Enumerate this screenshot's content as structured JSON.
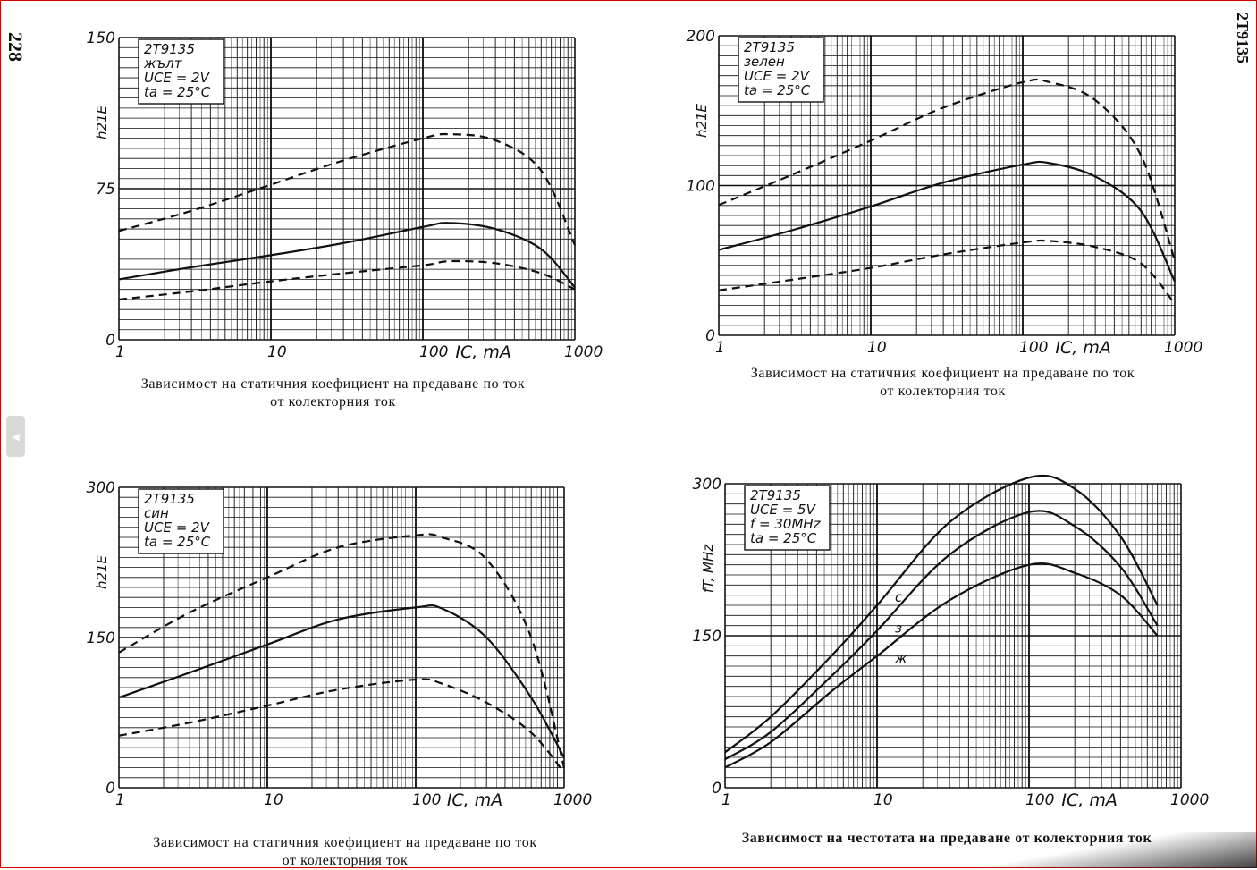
{
  "page": {
    "page_number": "228",
    "part_number_header": "2T9135",
    "nav_handle_icon": "chevron-left-icon"
  },
  "captions": [
    {
      "line1": "Зависимост на статичния коефициент на предаване по ток",
      "line2": "от колекторния ток"
    },
    {
      "line1": "Зависимост на статичния коефициент на предаване по ток",
      "line2": "от колекторния ток"
    },
    {
      "line1": "Зависимост на статичния коефициент на предаване по ток",
      "line2": "от колекторния ток"
    },
    {
      "line1": "Зависимост на честотата на предаване от колекторния ток",
      "line2": ""
    }
  ],
  "chart_data": [
    {
      "type": "line",
      "legend_box": [
        "2T9135",
        "жълт",
        "UCE = 2V",
        "ta = 25°C"
      ],
      "xlabel": "IC, mA",
      "ylabel": "h21E",
      "xscale": "log",
      "xlim": [
        1,
        1000
      ],
      "ylim": [
        0,
        150
      ],
      "x_ticks": [
        "1",
        "10",
        "100",
        "1000"
      ],
      "y_ticks": [
        "0",
        "75",
        "150"
      ],
      "grid": true,
      "series": [
        {
          "style": "dashed",
          "x": [
            1,
            3,
            10,
            30,
            100,
            150,
            300,
            600,
            1000
          ],
          "y": [
            54,
            64,
            77,
            89,
            100,
            102,
            99,
            84,
            47
          ]
        },
        {
          "style": "solid",
          "x": [
            1,
            3,
            10,
            30,
            100,
            150,
            300,
            600,
            1000
          ],
          "y": [
            30,
            36,
            42,
            48,
            56,
            58,
            55,
            45,
            26
          ]
        },
        {
          "style": "dashed",
          "x": [
            1,
            3,
            10,
            30,
            100,
            150,
            300,
            600,
            1000
          ],
          "y": [
            20,
            24,
            29,
            33,
            37,
            39,
            38,
            33,
            25
          ]
        }
      ]
    },
    {
      "type": "line",
      "legend_box": [
        "2T9135",
        "зелен",
        "UCE = 2V",
        "ta = 25°C"
      ],
      "xlabel": "IC, mA",
      "ylabel": "h21E",
      "xscale": "log",
      "xlim": [
        1,
        1000
      ],
      "ylim": [
        0,
        200
      ],
      "x_ticks": [
        "1",
        "10",
        "100",
        "1000"
      ],
      "y_ticks": [
        "0",
        "100",
        "200"
      ],
      "grid": true,
      "series": [
        {
          "style": "dashed",
          "x": [
            1,
            3,
            10,
            30,
            100,
            150,
            300,
            600,
            1000
          ],
          "y": [
            87,
            107,
            130,
            152,
            169,
            169,
            157,
            120,
            50
          ]
        },
        {
          "style": "solid",
          "x": [
            1,
            3,
            10,
            30,
            100,
            150,
            300,
            600,
            1000
          ],
          "y": [
            57,
            70,
            86,
            102,
            114,
            115,
            106,
            83,
            36
          ]
        },
        {
          "style": "dashed",
          "x": [
            1,
            3,
            10,
            30,
            100,
            150,
            300,
            600,
            1000
          ],
          "y": [
            30,
            37,
            45,
            54,
            62,
            63,
            59,
            48,
            21
          ]
        }
      ]
    },
    {
      "type": "line",
      "legend_box": [
        "2T9135",
        "син",
        "UCE = 2V",
        "ta = 25°C"
      ],
      "xlabel": "IC, mA",
      "ylabel": "h21E",
      "xscale": "log",
      "xlim": [
        1,
        1000
      ],
      "ylim": [
        0,
        300
      ],
      "x_ticks": [
        "1",
        "10",
        "100",
        "1000"
      ],
      "y_ticks": [
        "0",
        "150",
        "300"
      ],
      "grid": true,
      "series": [
        {
          "style": "dashed",
          "x": [
            1,
            3,
            10,
            30,
            100,
            150,
            300,
            600,
            1000
          ],
          "y": [
            135,
            175,
            210,
            240,
            252,
            250,
            228,
            150,
            20
          ]
        },
        {
          "style": "solid",
          "x": [
            1,
            3,
            10,
            30,
            100,
            150,
            300,
            600,
            1000
          ],
          "y": [
            90,
            115,
            143,
            168,
            180,
            179,
            150,
            90,
            30
          ]
        },
        {
          "style": "dashed",
          "x": [
            1,
            3,
            10,
            30,
            100,
            150,
            300,
            600,
            1000
          ],
          "y": [
            52,
            65,
            82,
            98,
            108,
            104,
            85,
            55,
            15
          ]
        }
      ]
    },
    {
      "type": "line",
      "legend_box": [
        "2T9135",
        "UCE = 5V",
        "f = 30MHz",
        "ta = 25°C"
      ],
      "xlabel": "IC, mA",
      "ylabel": "fT, MHz",
      "xscale": "log",
      "xlim": [
        1,
        1000
      ],
      "ylim": [
        0,
        300
      ],
      "x_ticks": [
        "1",
        "10",
        "100",
        "1000"
      ],
      "y_ticks": [
        "0",
        "150",
        "300"
      ],
      "grid": true,
      "series": [
        {
          "name": "с",
          "style": "solid",
          "x": [
            1,
            2,
            5,
            10,
            30,
            100,
            200,
            400,
            700
          ],
          "y": [
            35,
            70,
            130,
            180,
            262,
            306,
            295,
            248,
            180
          ]
        },
        {
          "name": "з",
          "style": "solid",
          "x": [
            1,
            2,
            5,
            10,
            30,
            100,
            200,
            400,
            700
          ],
          "y": [
            28,
            55,
            110,
            155,
            230,
            272,
            258,
            218,
            160
          ]
        },
        {
          "name": "ж",
          "style": "solid",
          "x": [
            1,
            2,
            5,
            10,
            30,
            100,
            200,
            400,
            700
          ],
          "y": [
            20,
            45,
            95,
            130,
            185,
            220,
            212,
            190,
            150
          ]
        }
      ]
    }
  ]
}
